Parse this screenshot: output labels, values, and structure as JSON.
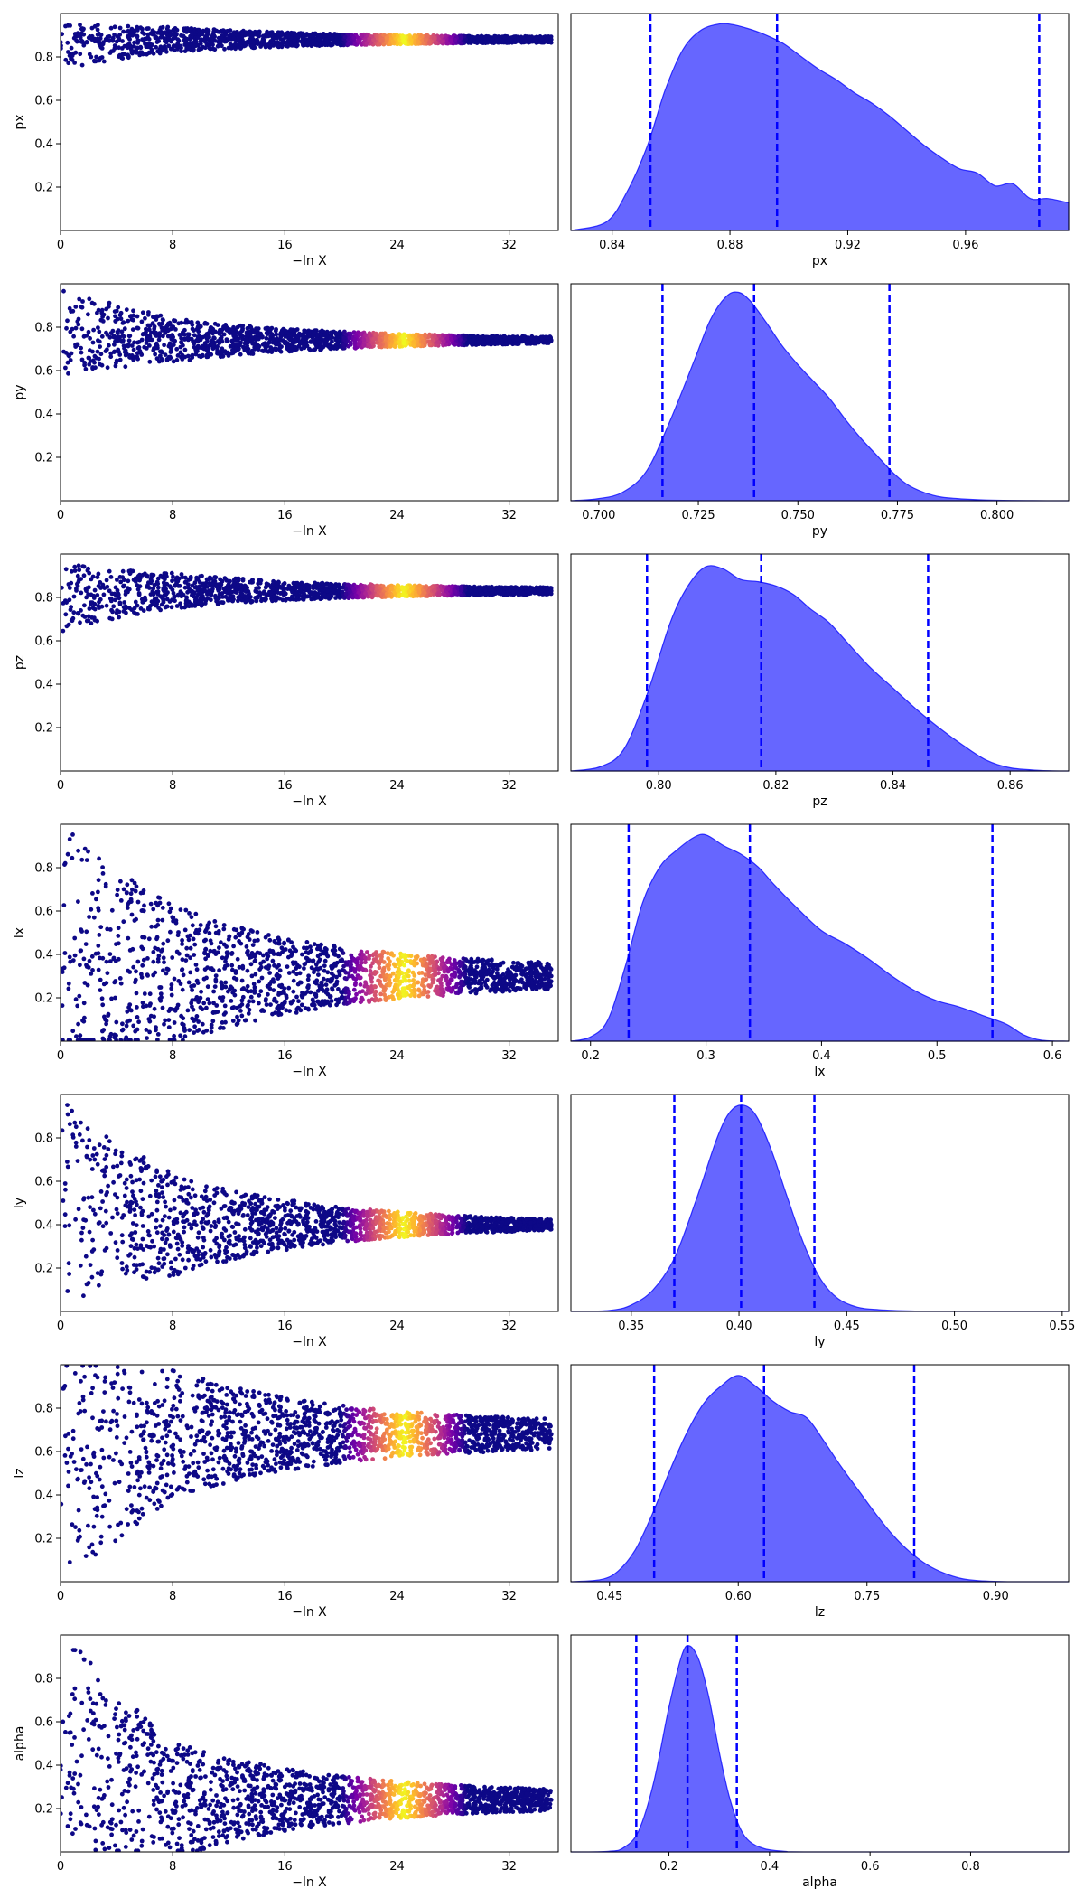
{
  "chart_data": [
    {
      "type": "scatter",
      "panel": "trace",
      "param": "px",
      "xlabel": "−ln X",
      "ylabel": "px",
      "xlim": [
        0,
        35.5
      ],
      "ylim": [
        0,
        1
      ],
      "xticks": [
        "0",
        "8",
        "16",
        "24",
        "32"
      ],
      "yticks": [
        "0.2",
        "0.4",
        "0.6",
        "0.8"
      ],
      "colormap": "plasma",
      "shape": {
        "converged_center": 0.88,
        "center_start": 0.85,
        "width_start": 0.1,
        "width_end": 0.01,
        "rise_x": 3.0,
        "low_edge_x0": 0.3,
        "low_edge_rate": 1.6,
        "bright_start": 20,
        "bright_end": 29,
        "xmax": 35
      }
    },
    {
      "type": "area",
      "panel": "marginal",
      "param": "px",
      "xlabel": "px",
      "xlim": [
        0.826,
        0.995
      ],
      "ylim": [
        0,
        1.02
      ],
      "xticks": [
        0.84,
        0.88,
        0.92,
        0.96
      ],
      "xtick_labels": [
        "0.84",
        "0.88",
        "0.92",
        "0.96"
      ],
      "quantile_lines": [
        0.853,
        0.896,
        0.985
      ],
      "x": [
        0.826,
        0.838,
        0.845,
        0.852,
        0.858,
        0.864,
        0.87,
        0.876,
        0.88,
        0.886,
        0.892,
        0.898,
        0.904,
        0.91,
        0.916,
        0.922,
        0.928,
        0.934,
        0.94,
        0.946,
        0.952,
        0.958,
        0.964,
        0.97,
        0.976,
        0.982,
        0.988,
        0.995
      ],
      "y": [
        0.0,
        0.04,
        0.18,
        0.4,
        0.66,
        0.85,
        0.94,
        0.97,
        0.97,
        0.95,
        0.92,
        0.88,
        0.82,
        0.76,
        0.71,
        0.65,
        0.6,
        0.54,
        0.47,
        0.4,
        0.34,
        0.29,
        0.27,
        0.21,
        0.22,
        0.15,
        0.15,
        0.13
      ]
    },
    {
      "type": "scatter",
      "panel": "trace",
      "param": "py",
      "xlabel": "−ln X",
      "ylabel": "py",
      "xlim": [
        0,
        35.5
      ],
      "ylim": [
        0,
        1
      ],
      "xticks": [
        "0",
        "8",
        "16",
        "24",
        "32"
      ],
      "yticks": [
        "0.2",
        "0.4",
        "0.6",
        "0.8"
      ],
      "colormap": "plasma",
      "shape": {
        "converged_center": 0.74,
        "center_start": 0.78,
        "width_start": 0.2,
        "width_end": 0.008,
        "rise_x": 2.5,
        "low_edge_x0": 0.3,
        "low_edge_rate": 1.5,
        "bright_start": 20,
        "bright_end": 29,
        "xmax": 35
      }
    },
    {
      "type": "area",
      "panel": "marginal",
      "param": "py",
      "xlabel": "py",
      "xlim": [
        0.693,
        0.818
      ],
      "ylim": [
        0,
        1.02
      ],
      "xticks": [
        0.7,
        0.725,
        0.75,
        0.775,
        0.8
      ],
      "xtick_labels": [
        "0.700",
        "0.725",
        "0.750",
        "0.775",
        "0.800"
      ],
      "quantile_lines": [
        0.716,
        0.739,
        0.773
      ],
      "x": [
        0.693,
        0.7,
        0.706,
        0.712,
        0.718,
        0.724,
        0.728,
        0.732,
        0.735,
        0.738,
        0.742,
        0.746,
        0.75,
        0.754,
        0.758,
        0.762,
        0.766,
        0.77,
        0.774,
        0.778,
        0.784,
        0.79,
        0.8,
        0.818
      ],
      "y": [
        0.0,
        0.01,
        0.04,
        0.14,
        0.38,
        0.66,
        0.85,
        0.96,
        0.98,
        0.94,
        0.84,
        0.73,
        0.64,
        0.56,
        0.48,
        0.38,
        0.29,
        0.21,
        0.13,
        0.07,
        0.025,
        0.01,
        0.002,
        0.0
      ]
    },
    {
      "type": "scatter",
      "panel": "trace",
      "param": "pz",
      "xlabel": "−ln X",
      "ylabel": "pz",
      "xlim": [
        0,
        35.5
      ],
      "ylim": [
        0,
        1
      ],
      "xticks": [
        "0",
        "8",
        "16",
        "24",
        "32"
      ],
      "yticks": [
        "0.2",
        "0.4",
        "0.6",
        "0.8"
      ],
      "colormap": "plasma",
      "shape": {
        "converged_center": 0.83,
        "center_start": 0.8,
        "width_start": 0.15,
        "width_end": 0.01,
        "rise_x": 4.0,
        "low_edge_x0": 4.5,
        "low_edge_rate": 1.1,
        "bright_start": 20,
        "bright_end": 29,
        "xmax": 35
      }
    },
    {
      "type": "area",
      "panel": "marginal",
      "param": "pz",
      "xlabel": "pz",
      "xlim": [
        0.785,
        0.87
      ],
      "ylim": [
        0,
        1.02
      ],
      "xticks": [
        0.8,
        0.82,
        0.84,
        0.86
      ],
      "xtick_labels": [
        "0.80",
        "0.82",
        "0.84",
        "0.86"
      ],
      "quantile_lines": [
        0.798,
        0.8175,
        0.846
      ],
      "x": [
        0.785,
        0.79,
        0.794,
        0.798,
        0.802,
        0.805,
        0.808,
        0.811,
        0.814,
        0.817,
        0.82,
        0.823,
        0.826,
        0.829,
        0.832,
        0.836,
        0.84,
        0.844,
        0.848,
        0.852,
        0.856,
        0.86,
        0.865,
        0.87
      ],
      "y": [
        0.0,
        0.02,
        0.1,
        0.36,
        0.7,
        0.87,
        0.96,
        0.95,
        0.9,
        0.89,
        0.87,
        0.83,
        0.76,
        0.7,
        0.61,
        0.49,
        0.39,
        0.29,
        0.2,
        0.12,
        0.05,
        0.015,
        0.003,
        0.0
      ]
    },
    {
      "type": "scatter",
      "panel": "trace",
      "param": "lx",
      "xlabel": "−ln X",
      "ylabel": "lx",
      "xlim": [
        0,
        35.5
      ],
      "ylim": [
        0,
        1
      ],
      "xticks": [
        "0",
        "8",
        "16",
        "24",
        "32"
      ],
      "yticks": [
        "0.2",
        "0.4",
        "0.6",
        "0.8"
      ],
      "colormap": "plasma",
      "shape": {
        "converged_center": 0.3,
        "center_start": 0.4,
        "width_start": 0.6,
        "width_end": 0.04,
        "rise_x": 0.5,
        "low_edge_x0": 0,
        "low_edge_rate": 0,
        "bright_start": 20,
        "bright_end": 29,
        "xmax": 35
      }
    },
    {
      "type": "area",
      "panel": "marginal",
      "param": "lx",
      "xlabel": "lx",
      "xlim": [
        0.183,
        0.614
      ],
      "ylim": [
        0,
        1.02
      ],
      "xticks": [
        0.2,
        0.3,
        0.4,
        0.5,
        0.6
      ],
      "xtick_labels": [
        "0.2",
        "0.3",
        "0.4",
        "0.5",
        "0.6"
      ],
      "quantile_lines": [
        0.233,
        0.338,
        0.548
      ],
      "x": [
        0.183,
        0.2,
        0.215,
        0.23,
        0.245,
        0.26,
        0.275,
        0.29,
        0.3,
        0.315,
        0.33,
        0.345,
        0.36,
        0.38,
        0.4,
        0.42,
        0.44,
        0.46,
        0.48,
        0.5,
        0.52,
        0.54,
        0.56,
        0.575,
        0.59,
        0.614
      ],
      "y": [
        0.0,
        0.02,
        0.1,
        0.35,
        0.65,
        0.82,
        0.9,
        0.96,
        0.97,
        0.92,
        0.88,
        0.82,
        0.73,
        0.62,
        0.52,
        0.46,
        0.39,
        0.31,
        0.24,
        0.19,
        0.16,
        0.12,
        0.08,
        0.03,
        0.005,
        0.0
      ]
    },
    {
      "type": "scatter",
      "panel": "trace",
      "param": "ly",
      "xlabel": "−ln X",
      "ylabel": "ly",
      "xlim": [
        0,
        35.5
      ],
      "ylim": [
        0,
        1
      ],
      "xticks": [
        "0",
        "8",
        "16",
        "24",
        "32"
      ],
      "yticks": [
        "0.2",
        "0.4",
        "0.6",
        "0.8"
      ],
      "colormap": "plasma",
      "shape": {
        "converged_center": 0.4,
        "center_start": 0.5,
        "width_start": 0.48,
        "width_end": 0.006,
        "rise_x": 0.5,
        "low_edge_x0": 0,
        "low_edge_rate": 0,
        "bright_start": 20,
        "bright_end": 29,
        "xmax": 35
      }
    },
    {
      "type": "area",
      "panel": "marginal",
      "param": "ly",
      "xlabel": "ly",
      "xlim": [
        0.322,
        0.553
      ],
      "ylim": [
        0,
        1.02
      ],
      "xticks": [
        0.35,
        0.4,
        0.45,
        0.5,
        0.55
      ],
      "xtick_labels": [
        "0.35",
        "0.40",
        "0.45",
        "0.50",
        "0.55"
      ],
      "quantile_lines": [
        0.37,
        0.401,
        0.435
      ],
      "x": [
        0.322,
        0.34,
        0.35,
        0.36,
        0.37,
        0.38,
        0.39,
        0.396,
        0.402,
        0.408,
        0.415,
        0.422,
        0.43,
        0.438,
        0.446,
        0.455,
        0.465,
        0.48,
        0.5,
        0.553
      ],
      "y": [
        0.0,
        0.005,
        0.03,
        0.1,
        0.25,
        0.52,
        0.82,
        0.94,
        0.97,
        0.92,
        0.76,
        0.55,
        0.32,
        0.15,
        0.06,
        0.02,
        0.008,
        0.002,
        0.0,
        0.0
      ]
    },
    {
      "type": "scatter",
      "panel": "trace",
      "param": "lz",
      "xlabel": "−ln X",
      "ylabel": "lz",
      "xlim": [
        0,
        35.5
      ],
      "ylim": [
        0,
        1
      ],
      "xticks": [
        "0",
        "8",
        "16",
        "24",
        "32"
      ],
      "yticks": [
        "0.2",
        "0.4",
        "0.6",
        "0.8"
      ],
      "colormap": "plasma",
      "shape": {
        "converged_center": 0.68,
        "center_start": 0.5,
        "width_start": 0.52,
        "width_end": 0.05,
        "rise_x": 0.5,
        "low_edge_x0": 0,
        "low_edge_rate": 0,
        "bright_start": 20,
        "bright_end": 29,
        "xmax": 35
      }
    },
    {
      "type": "area",
      "panel": "marginal",
      "param": "lz",
      "xlabel": "lz",
      "xlim": [
        0.405,
        0.985
      ],
      "ylim": [
        0,
        1.02
      ],
      "xticks": [
        0.45,
        0.6,
        0.75,
        0.9
      ],
      "xtick_labels": [
        "0.45",
        "0.60",
        "0.75",
        "0.90"
      ],
      "quantile_lines": [
        0.502,
        0.63,
        0.805
      ],
      "x": [
        0.405,
        0.44,
        0.46,
        0.48,
        0.5,
        0.52,
        0.54,
        0.56,
        0.58,
        0.6,
        0.62,
        0.64,
        0.66,
        0.68,
        0.7,
        0.72,
        0.74,
        0.76,
        0.78,
        0.8,
        0.82,
        0.84,
        0.86,
        0.88,
        0.92,
        0.985
      ],
      "y": [
        0.0,
        0.01,
        0.05,
        0.15,
        0.32,
        0.52,
        0.7,
        0.84,
        0.92,
        0.97,
        0.92,
        0.85,
        0.8,
        0.77,
        0.66,
        0.54,
        0.43,
        0.32,
        0.22,
        0.14,
        0.08,
        0.04,
        0.015,
        0.005,
        0.0,
        0.0
      ]
    },
    {
      "type": "scatter",
      "panel": "trace",
      "param": "alpha",
      "xlabel": "−ln X",
      "ylabel": "alpha",
      "xlim": [
        0,
        35.5
      ],
      "ylim": [
        0,
        1
      ],
      "xticks": [
        "0",
        "8",
        "16",
        "24",
        "32"
      ],
      "yticks": [
        "0.2",
        "0.4",
        "0.6",
        "0.8"
      ],
      "colormap": "plasma",
      "shape": {
        "converged_center": 0.24,
        "center_start": 0.5,
        "width_start": 0.5,
        "width_end": 0.03,
        "rise_x": 0.5,
        "low_edge_x0": 0,
        "low_edge_rate": 0,
        "bright_start": 20,
        "bright_end": 29,
        "xmax": 35
      }
    },
    {
      "type": "area",
      "panel": "marginal",
      "param": "alpha",
      "xlabel": "alpha",
      "xlim": [
        0.005,
        0.995
      ],
      "ylim": [
        0,
        1.02
      ],
      "xticks": [
        0.2,
        0.4,
        0.6,
        0.8
      ],
      "xtick_labels": [
        "0.2",
        "0.4",
        "0.6",
        "0.8"
      ],
      "quantile_lines": [
        0.135,
        0.237,
        0.335
      ],
      "x": [
        0.005,
        0.08,
        0.11,
        0.14,
        0.17,
        0.2,
        0.225,
        0.24,
        0.26,
        0.28,
        0.3,
        0.32,
        0.34,
        0.36,
        0.39,
        0.43,
        0.5,
        0.995
      ],
      "y": [
        0.0,
        0.003,
        0.02,
        0.1,
        0.33,
        0.68,
        0.92,
        0.97,
        0.9,
        0.72,
        0.47,
        0.26,
        0.12,
        0.05,
        0.015,
        0.003,
        0.0,
        0.0
      ]
    }
  ]
}
